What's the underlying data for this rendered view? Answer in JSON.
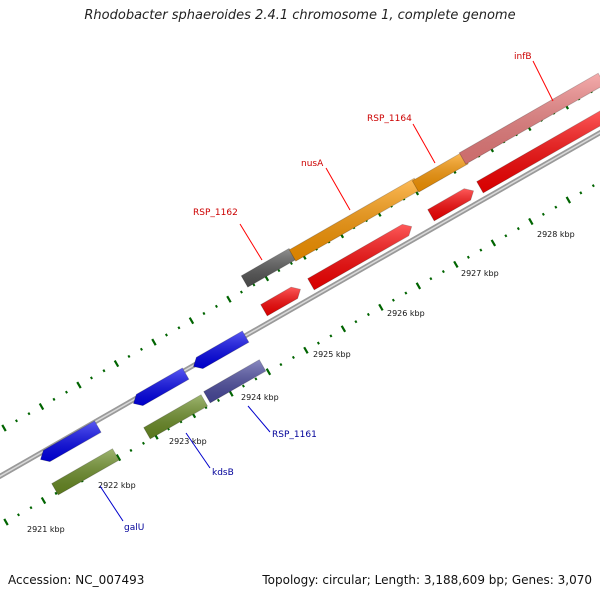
{
  "title": "Rhodobacter sphaeroides 2.4.1 chromosome 1, complete genome",
  "footer": {
    "accession": "Accession: NC_007493",
    "summary": "Topology: circular; Length: 3,188,609 bp; Genes: 3,070"
  },
  "ruler_labels": [
    "2921 kbp",
    "2922 kbp",
    "2923 kbp",
    "2924 kbp",
    "2925 kbp",
    "2926 kbp",
    "2927 kbp",
    "2928 kbp"
  ],
  "gene_labels": {
    "top": [
      "infB",
      "RSP_1164",
      "nusA",
      "RSP_1162"
    ],
    "bottom": [
      "RSP_1161",
      "kdsB",
      "galU"
    ]
  },
  "colors": {
    "top_label": "#cc0000",
    "bottom_label": "#000099",
    "orange": "#ff9900",
    "pink": "#f08080",
    "gray_gene": "#555555",
    "red": "#ff0000",
    "blue": "#0000ee",
    "olive": "#6b8e23",
    "purple": "#4a4aa0",
    "tick": "#006400",
    "backbone": "#808080"
  }
}
